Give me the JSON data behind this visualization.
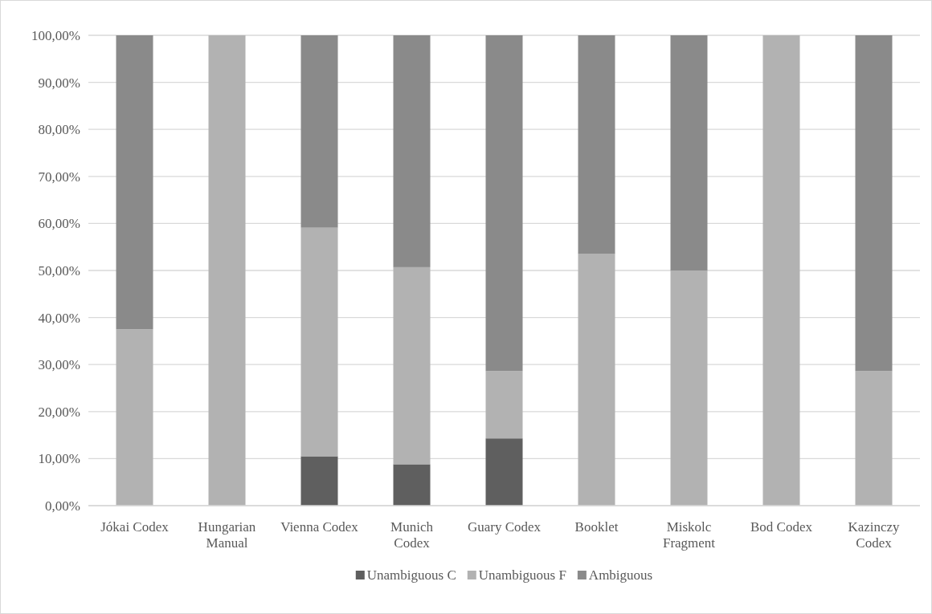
{
  "chart_data": {
    "type": "bar",
    "stacked": true,
    "categories": [
      "Jókai Codex",
      "Hungarian Manual",
      "Vienna Codex",
      "Munich Codex",
      "Guary Codex",
      "Booklet",
      "Miskolc Fragment",
      "Bod Codex",
      "Kazinczy Codex"
    ],
    "series": [
      {
        "name": "Unambiguous C",
        "color": "#5f5f5f",
        "values": [
          0,
          0,
          10.5,
          8.8,
          14.3,
          0,
          0,
          0,
          0
        ]
      },
      {
        "name": "Unambiguous F",
        "color": "#b2b2b2",
        "values": [
          37.5,
          100,
          48.6,
          41.9,
          14.3,
          53.5,
          50,
          100,
          28.6
        ]
      },
      {
        "name": "Ambiguous",
        "color": "#8a8a8a",
        "values": [
          62.5,
          0,
          40.9,
          49.3,
          71.4,
          46.5,
          50,
          0,
          71.4
        ]
      }
    ],
    "ylim": [
      0,
      100
    ],
    "yticks": [
      {
        "value": 0,
        "label": "0,00%"
      },
      {
        "value": 10,
        "label": "10,00%"
      },
      {
        "value": 20,
        "label": "20,00%"
      },
      {
        "value": 30,
        "label": "30,00%"
      },
      {
        "value": 40,
        "label": "40,00%"
      },
      {
        "value": 50,
        "label": "50,00%"
      },
      {
        "value": 60,
        "label": "60,00%"
      },
      {
        "value": 70,
        "label": "70,00%"
      },
      {
        "value": 80,
        "label": "80,00%"
      },
      {
        "value": 90,
        "label": "90,00%"
      },
      {
        "value": 100,
        "label": "100,00%"
      }
    ],
    "grid": "y",
    "legend": "bottom"
  }
}
